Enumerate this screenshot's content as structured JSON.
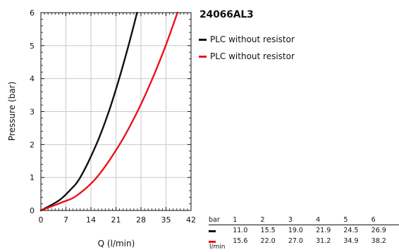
{
  "chart_data": {
    "type": "line",
    "title": "24066AL3",
    "xlabel": "Q (l/min)",
    "ylabel": "Pressure (bar)",
    "xlim": [
      0,
      42
    ],
    "ylim": [
      0,
      6
    ],
    "xticks": [
      "0",
      "7",
      "14",
      "21",
      "28",
      "35",
      "42"
    ],
    "yticks": [
      "0",
      "1",
      "2",
      "3",
      "4",
      "5",
      "6"
    ],
    "grid": true,
    "legend_position": "right-top",
    "series": [
      {
        "name": "PLC without resistor",
        "color": "#111111",
        "x": [
          0,
          5,
          8,
          11,
          15.5,
          19,
          21.9,
          24.5,
          26.9
        ],
        "y": [
          0,
          0.3,
          0.6,
          1.0,
          2.0,
          3.0,
          4.0,
          5.0,
          6.0
        ]
      },
      {
        "name": "PLC without resistor",
        "color": "#e8141c",
        "x": [
          0,
          6,
          10,
          15.6,
          22.0,
          27.0,
          31.2,
          34.9,
          38.2
        ],
        "y": [
          0,
          0.25,
          0.45,
          1.0,
          2.0,
          3.0,
          4.0,
          5.0,
          6.0
        ]
      }
    ],
    "table": {
      "header": [
        "bar",
        "1",
        "2",
        "3",
        "4",
        "5",
        "6"
      ],
      "rows": [
        {
          "color": "#111111",
          "unit": "",
          "values": [
            "11.0",
            "15.5",
            "19.0",
            "21.9",
            "24.5",
            "26.9"
          ]
        },
        {
          "color": "#e8141c",
          "unit": "l/min",
          "values": [
            "15.6",
            "22.0",
            "27.0",
            "31.2",
            "34.9",
            "38.2"
          ]
        }
      ]
    }
  }
}
